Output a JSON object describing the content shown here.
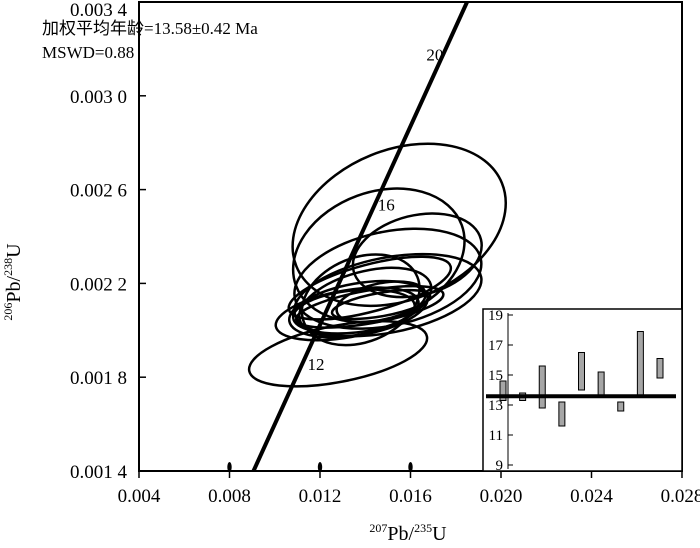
{
  "chart_data": {
    "type": "scatter",
    "subtype": "concordia-diagram",
    "xlabel": "Pb/U",
    "xlabel_parts": {
      "sup1": "207",
      "base1": "Pb/",
      "sup2": "235",
      "base2": "U"
    },
    "ylabel_parts": {
      "sup1": "206",
      "base1": "Pb/",
      "sup2": "238",
      "base2": "U"
    },
    "xlim": [
      0.004,
      0.028
    ],
    "ylim": [
      0.0014,
      0.0034
    ],
    "xticks": [
      {
        "value": 0.004,
        "label": "0.004"
      },
      {
        "value": 0.008,
        "label": "0.008"
      },
      {
        "value": 0.012,
        "label": "0.012"
      },
      {
        "value": 0.016,
        "label": "0.016"
      },
      {
        "value": 0.02,
        "label": "0.020"
      },
      {
        "value": 0.024,
        "label": "0.024"
      },
      {
        "value": 0.028,
        "label": "0.028"
      }
    ],
    "yticks": [
      {
        "value": 0.0014,
        "label": "0.001 4"
      },
      {
        "value": 0.0018,
        "label": "0.001 8"
      },
      {
        "value": 0.0022,
        "label": "0.002 2"
      },
      {
        "value": 0.0026,
        "label": "0.002 6"
      },
      {
        "value": 0.003,
        "label": "0.003 0"
      },
      {
        "value": 0.0034,
        "label": "0.003 4"
      }
    ],
    "annotations": {
      "age": "加权平均年龄=13.58±0.42 Ma",
      "mswd": "MSWD=0.88"
    },
    "concordia": {
      "x": [
        0.00906,
        0.0185
      ],
      "y": [
        0.0014,
        0.0034
      ],
      "age_labels": [
        {
          "label": "20",
          "x": 0.0167,
          "y": 0.00315
        },
        {
          "label": "16",
          "x": 0.01455,
          "y": 0.00251
        },
        {
          "label": "12",
          "x": 0.01145,
          "y": 0.00183
        }
      ]
    },
    "ellipses": [
      {
        "cx": 0.0155,
        "cy": 0.00245,
        "rx": 0.0049,
        "ry": 0.00032,
        "angle_deg": -22
      },
      {
        "cx": 0.0146,
        "cy": 0.00232,
        "rx": 0.0039,
        "ry": 0.00027,
        "angle_deg": -20
      },
      {
        "cx": 0.0163,
        "cy": 0.00232,
        "rx": 0.0029,
        "ry": 0.00017,
        "angle_deg": -14
      },
      {
        "cx": 0.015,
        "cy": 0.00222,
        "rx": 0.0042,
        "ry": 0.0002,
        "angle_deg": -12
      },
      {
        "cx": 0.0138,
        "cy": 0.00213,
        "rx": 0.0027,
        "ry": 0.00018,
        "angle_deg": -22
      },
      {
        "cx": 0.015,
        "cy": 0.00215,
        "rx": 0.0042,
        "ry": 0.00016,
        "angle_deg": -11
      },
      {
        "cx": 0.014,
        "cy": 0.00212,
        "rx": 0.003,
        "ry": 0.00013,
        "angle_deg": -15
      },
      {
        "cx": 0.0147,
        "cy": 0.00212,
        "rx": 0.002,
        "ry": 8e-05,
        "angle_deg": -12
      },
      {
        "cx": 0.0132,
        "cy": 0.00207,
        "rx": 0.0032,
        "ry": 0.0001,
        "angle_deg": -10
      },
      {
        "cx": 0.0135,
        "cy": 0.00208,
        "rx": 0.0027,
        "ry": 9e-05,
        "angle_deg": -6
      },
      {
        "cx": 0.0137,
        "cy": 0.00209,
        "rx": 0.0031,
        "ry": 0.00011,
        "angle_deg": -10
      },
      {
        "cx": 0.0128,
        "cy": 0.0019,
        "rx": 0.004,
        "ry": 0.00012,
        "angle_deg": -11
      },
      {
        "cx": 0.0142,
        "cy": 0.00218,
        "rx": 0.0037,
        "ry": 0.0001,
        "angle_deg": -15
      },
      {
        "cx": 0.0142,
        "cy": 0.0021,
        "rx": 0.0033,
        "ry": 7e-05,
        "angle_deg": -10
      },
      {
        "cx": 0.0147,
        "cy": 0.00211,
        "rx": 0.0022,
        "ry": 5e-05,
        "angle_deg": -10
      }
    ],
    "baseline_marks_x": [
      0.008,
      0.012,
      0.016
    ],
    "inset": {
      "type": "bar",
      "subtype": "weighted-mean-error-bars",
      "ylim": [
        9,
        19
      ],
      "yticks": [
        9,
        11,
        13,
        15,
        17,
        19
      ],
      "mean": 13.58,
      "bars": [
        {
          "low": 13.3,
          "high": 14.6
        },
        {
          "low": 13.3,
          "high": 13.8
        },
        {
          "low": 12.8,
          "high": 15.6
        },
        {
          "low": 11.6,
          "high": 13.2
        },
        {
          "low": 14.0,
          "high": 16.5
        },
        {
          "low": 13.6,
          "high": 15.2
        },
        {
          "low": 12.6,
          "high": 13.2
        },
        {
          "low": 13.6,
          "high": 17.9
        },
        {
          "low": 14.8,
          "high": 16.1
        }
      ]
    }
  }
}
